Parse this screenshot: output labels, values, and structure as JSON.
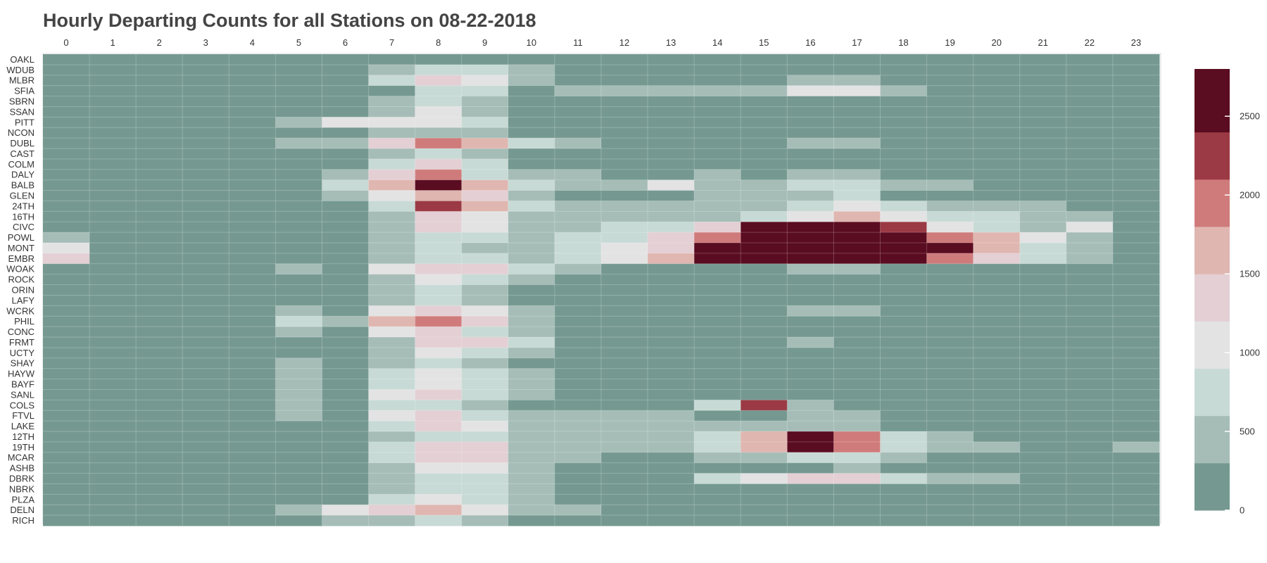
{
  "chart_data": {
    "type": "heatmap",
    "title": "Hourly Departing Counts for all Stations on 08-22-2018",
    "x": [
      "0",
      "1",
      "2",
      "3",
      "4",
      "5",
      "6",
      "7",
      "8",
      "9",
      "10",
      "11",
      "12",
      "13",
      "14",
      "15",
      "16",
      "17",
      "18",
      "19",
      "20",
      "21",
      "22",
      "23"
    ],
    "y": [
      "OAKL",
      "WDUB",
      "MLBR",
      "SFIA",
      "SBRN",
      "SSAN",
      "PITT",
      "NCON",
      "DUBL",
      "CAST",
      "COLM",
      "DALY",
      "BALB",
      "GLEN",
      "24TH",
      "16TH",
      "CIVC",
      "POWL",
      "MONT",
      "EMBR",
      "WOAK",
      "ROCK",
      "ORIN",
      "LAFY",
      "WCRK",
      "PHIL",
      "CONC",
      "FRMT",
      "UCTY",
      "SHAY",
      "HAYW",
      "BAYF",
      "SANL",
      "COLS",
      "FTVL",
      "LAKE",
      "12TH",
      "19TH",
      "MCAR",
      "ASHB",
      "DBRK",
      "NBRK",
      "PLZA",
      "DELN",
      "RICH"
    ],
    "colorbar": {
      "ticks": [
        0,
        500,
        1000,
        1500,
        2000,
        2500
      ],
      "range": [
        0,
        2800
      ],
      "bins": [
        [
          0,
          300,
          "#759991"
        ],
        [
          300,
          600,
          "#a6bdb7"
        ],
        [
          600,
          900,
          "#c8dad5"
        ],
        [
          900,
          1200,
          "#e3e3e3"
        ],
        [
          1200,
          1500,
          "#e3cfd4"
        ],
        [
          1500,
          1800,
          "#e0b6b0"
        ],
        [
          1800,
          2100,
          "#d07b7b"
        ],
        [
          2100,
          2400,
          "#9b3a44"
        ],
        [
          2400,
          2800,
          "#5a0c20"
        ]
      ]
    },
    "values": [
      [
        100,
        100,
        100,
        100,
        100,
        100,
        100,
        100,
        100,
        100,
        100,
        100,
        100,
        100,
        100,
        100,
        100,
        100,
        100,
        100,
        100,
        100,
        100,
        100
      ],
      [
        100,
        100,
        100,
        100,
        100,
        100,
        100,
        400,
        750,
        750,
        450,
        100,
        100,
        100,
        100,
        100,
        100,
        100,
        100,
        100,
        100,
        100,
        100,
        100
      ],
      [
        100,
        100,
        100,
        100,
        100,
        100,
        100,
        750,
        1350,
        1050,
        450,
        100,
        100,
        100,
        100,
        100,
        400,
        400,
        100,
        100,
        100,
        100,
        100,
        100
      ],
      [
        100,
        100,
        100,
        100,
        100,
        100,
        100,
        100,
        750,
        750,
        100,
        400,
        400,
        400,
        400,
        400,
        1050,
        1050,
        400,
        100,
        100,
        100,
        100,
        100
      ],
      [
        100,
        100,
        100,
        100,
        100,
        100,
        100,
        400,
        750,
        400,
        100,
        100,
        100,
        100,
        100,
        100,
        100,
        100,
        100,
        100,
        100,
        100,
        100,
        100
      ],
      [
        100,
        100,
        100,
        100,
        100,
        100,
        100,
        400,
        1050,
        400,
        100,
        100,
        100,
        100,
        100,
        100,
        100,
        100,
        100,
        100,
        100,
        100,
        100,
        100
      ],
      [
        100,
        100,
        100,
        100,
        100,
        400,
        1050,
        1050,
        1050,
        750,
        100,
        100,
        100,
        100,
        100,
        100,
        100,
        100,
        100,
        100,
        100,
        100,
        100,
        100
      ],
      [
        100,
        100,
        100,
        100,
        100,
        100,
        100,
        400,
        400,
        400,
        100,
        100,
        100,
        100,
        100,
        100,
        100,
        100,
        100,
        100,
        100,
        100,
        100,
        100
      ],
      [
        100,
        100,
        100,
        100,
        100,
        400,
        400,
        1350,
        1950,
        1650,
        750,
        400,
        100,
        100,
        100,
        100,
        400,
        400,
        100,
        100,
        100,
        100,
        100,
        100
      ],
      [
        100,
        100,
        100,
        100,
        100,
        100,
        100,
        400,
        750,
        400,
        100,
        100,
        100,
        100,
        100,
        100,
        100,
        100,
        100,
        100,
        100,
        100,
        100,
        100
      ],
      [
        100,
        100,
        100,
        100,
        100,
        100,
        100,
        750,
        1350,
        750,
        100,
        100,
        100,
        100,
        100,
        100,
        100,
        100,
        100,
        100,
        100,
        100,
        100,
        100
      ],
      [
        100,
        100,
        100,
        100,
        100,
        100,
        400,
        1350,
        1950,
        750,
        400,
        400,
        100,
        100,
        400,
        100,
        400,
        400,
        100,
        100,
        100,
        100,
        100,
        100
      ],
      [
        100,
        100,
        100,
        100,
        100,
        100,
        750,
        1650,
        2600,
        1650,
        750,
        400,
        400,
        1050,
        400,
        400,
        750,
        750,
        400,
        400,
        100,
        100,
        100,
        100
      ],
      [
        100,
        100,
        100,
        100,
        100,
        100,
        400,
        1050,
        1650,
        1350,
        400,
        100,
        100,
        100,
        400,
        400,
        400,
        750,
        100,
        100,
        100,
        100,
        100,
        100
      ],
      [
        100,
        100,
        100,
        100,
        100,
        100,
        100,
        750,
        2250,
        1650,
        750,
        400,
        400,
        400,
        400,
        400,
        750,
        1050,
        750,
        400,
        400,
        400,
        100,
        100
      ],
      [
        100,
        100,
        100,
        100,
        100,
        100,
        100,
        400,
        1350,
        1050,
        400,
        400,
        400,
        400,
        400,
        750,
        1050,
        1650,
        1050,
        750,
        750,
        400,
        400,
        100
      ],
      [
        100,
        100,
        100,
        100,
        100,
        100,
        100,
        400,
        1350,
        1050,
        400,
        400,
        750,
        750,
        1350,
        2600,
        2600,
        2600,
        2250,
        1050,
        750,
        400,
        1050,
        100
      ],
      [
        400,
        100,
        100,
        100,
        100,
        100,
        100,
        400,
        750,
        750,
        400,
        750,
        750,
        1350,
        1950,
        2600,
        2600,
        2600,
        2600,
        1950,
        1650,
        1050,
        400,
        100
      ],
      [
        1050,
        100,
        100,
        100,
        100,
        100,
        100,
        400,
        750,
        400,
        400,
        750,
        1050,
        1350,
        2600,
        2600,
        2600,
        2600,
        2600,
        2600,
        1650,
        750,
        400,
        100
      ],
      [
        1350,
        100,
        100,
        100,
        100,
        100,
        100,
        400,
        750,
        750,
        400,
        750,
        1050,
        1650,
        2600,
        2600,
        2600,
        2600,
        2600,
        1950,
        1350,
        750,
        400,
        100
      ],
      [
        100,
        100,
        100,
        100,
        100,
        400,
        100,
        1050,
        1350,
        1350,
        750,
        400,
        100,
        100,
        100,
        100,
        400,
        400,
        100,
        100,
        100,
        100,
        100,
        100
      ],
      [
        100,
        100,
        100,
        100,
        100,
        100,
        100,
        400,
        1050,
        750,
        400,
        100,
        100,
        100,
        100,
        100,
        100,
        100,
        100,
        100,
        100,
        100,
        100,
        100
      ],
      [
        100,
        100,
        100,
        100,
        100,
        100,
        100,
        400,
        750,
        400,
        100,
        100,
        100,
        100,
        100,
        100,
        100,
        100,
        100,
        100,
        100,
        100,
        100,
        100
      ],
      [
        100,
        100,
        100,
        100,
        100,
        100,
        100,
        400,
        750,
        400,
        100,
        100,
        100,
        100,
        100,
        100,
        100,
        100,
        100,
        100,
        100,
        100,
        100,
        100
      ],
      [
        100,
        100,
        100,
        100,
        100,
        400,
        100,
        1050,
        1350,
        1050,
        400,
        100,
        100,
        100,
        100,
        100,
        400,
        400,
        100,
        100,
        100,
        100,
        100,
        100
      ],
      [
        100,
        100,
        100,
        100,
        100,
        750,
        400,
        1650,
        1950,
        1350,
        400,
        100,
        100,
        100,
        100,
        100,
        100,
        100,
        100,
        100,
        100,
        100,
        100,
        100
      ],
      [
        100,
        100,
        100,
        100,
        100,
        400,
        100,
        1050,
        1350,
        750,
        400,
        100,
        100,
        100,
        100,
        100,
        100,
        100,
        100,
        100,
        100,
        100,
        100,
        100
      ],
      [
        100,
        100,
        100,
        100,
        100,
        100,
        100,
        400,
        1350,
        1350,
        750,
        100,
        100,
        100,
        100,
        100,
        400,
        100,
        100,
        100,
        100,
        100,
        100,
        100
      ],
      [
        100,
        100,
        100,
        100,
        100,
        100,
        100,
        400,
        1050,
        750,
        400,
        100,
        100,
        100,
        100,
        100,
        100,
        100,
        100,
        100,
        100,
        100,
        100,
        100
      ],
      [
        100,
        100,
        100,
        100,
        100,
        400,
        100,
        400,
        750,
        400,
        100,
        100,
        100,
        100,
        100,
        100,
        100,
        100,
        100,
        100,
        100,
        100,
        100,
        100
      ],
      [
        100,
        100,
        100,
        100,
        100,
        400,
        100,
        750,
        1050,
        750,
        400,
        100,
        100,
        100,
        100,
        100,
        100,
        100,
        100,
        100,
        100,
        100,
        100,
        100
      ],
      [
        100,
        100,
        100,
        100,
        100,
        400,
        100,
        750,
        1050,
        750,
        400,
        100,
        100,
        100,
        100,
        100,
        100,
        100,
        100,
        100,
        100,
        100,
        100,
        100
      ],
      [
        100,
        100,
        100,
        100,
        100,
        400,
        100,
        1050,
        1350,
        750,
        400,
        100,
        100,
        100,
        100,
        100,
        100,
        100,
        100,
        100,
        100,
        100,
        100,
        100
      ],
      [
        100,
        100,
        100,
        100,
        100,
        400,
        100,
        750,
        750,
        400,
        100,
        100,
        100,
        100,
        750,
        2250,
        400,
        100,
        100,
        100,
        100,
        100,
        100,
        100
      ],
      [
        100,
        100,
        100,
        100,
        100,
        400,
        100,
        1050,
        1350,
        750,
        400,
        400,
        400,
        400,
        100,
        100,
        400,
        400,
        100,
        100,
        100,
        100,
        100,
        100
      ],
      [
        100,
        100,
        100,
        100,
        100,
        100,
        100,
        750,
        1350,
        1050,
        400,
        400,
        400,
        400,
        400,
        400,
        400,
        400,
        100,
        100,
        100,
        100,
        100,
        100
      ],
      [
        100,
        100,
        100,
        100,
        100,
        100,
        100,
        400,
        750,
        750,
        400,
        400,
        400,
        400,
        750,
        1650,
        2600,
        1950,
        750,
        400,
        100,
        100,
        100,
        100
      ],
      [
        100,
        100,
        100,
        100,
        100,
        100,
        100,
        750,
        1350,
        1350,
        400,
        400,
        400,
        400,
        750,
        1650,
        2600,
        1950,
        750,
        400,
        400,
        100,
        100,
        400
      ],
      [
        100,
        100,
        100,
        100,
        100,
        100,
        100,
        750,
        1350,
        1350,
        400,
        400,
        100,
        100,
        400,
        400,
        750,
        750,
        400,
        100,
        100,
        100,
        100,
        100
      ],
      [
        100,
        100,
        100,
        100,
        100,
        100,
        100,
        400,
        1050,
        1050,
        400,
        100,
        100,
        100,
        100,
        100,
        100,
        400,
        100,
        100,
        100,
        100,
        100,
        100
      ],
      [
        100,
        100,
        100,
        100,
        100,
        100,
        100,
        400,
        750,
        750,
        400,
        100,
        100,
        100,
        750,
        1050,
        1350,
        1350,
        750,
        400,
        400,
        100,
        100,
        100
      ],
      [
        100,
        100,
        100,
        100,
        100,
        100,
        100,
        400,
        750,
        750,
        400,
        100,
        100,
        100,
        100,
        100,
        100,
        100,
        100,
        100,
        100,
        100,
        100,
        100
      ],
      [
        100,
        100,
        100,
        100,
        100,
        100,
        100,
        750,
        1050,
        750,
        400,
        100,
        100,
        100,
        100,
        100,
        100,
        100,
        100,
        100,
        100,
        100,
        100,
        100
      ],
      [
        100,
        100,
        100,
        100,
        100,
        400,
        1050,
        1350,
        1650,
        1050,
        400,
        400,
        100,
        100,
        100,
        100,
        100,
        100,
        100,
        100,
        100,
        100,
        100,
        100
      ],
      [
        100,
        100,
        100,
        100,
        100,
        100,
        400,
        400,
        750,
        400,
        100,
        100,
        100,
        100,
        100,
        100,
        100,
        100,
        100,
        100,
        100,
        100,
        100,
        100
      ]
    ]
  }
}
